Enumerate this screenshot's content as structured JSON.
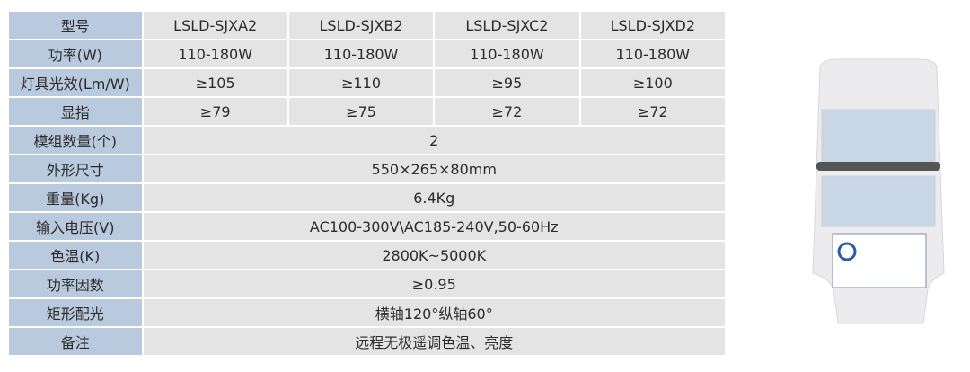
{
  "table": {
    "header_label": "型号",
    "models": [
      "LSLD-SJXA2",
      "LSLD-SJXB2",
      "LSLD-SJXC2",
      "LSLD-SJXD2"
    ],
    "rows_per_model": [
      {
        "label": "功率(W)",
        "values": [
          "110-180W",
          "110-180W",
          "110-180W",
          "110-180W"
        ]
      },
      {
        "label": "灯具光效(Lm/W)",
        "values": [
          "≥105",
          "≥110",
          "≥95",
          "≥100"
        ]
      },
      {
        "label": "显指",
        "values": [
          "≥79",
          "≥75",
          "≥72",
          "≥72"
        ]
      }
    ],
    "rows_shared": [
      {
        "label": "模组数量(个)",
        "value": "2"
      },
      {
        "label": "外形尺寸",
        "value": "550×265×80mm"
      },
      {
        "label": "重量(Kg)",
        "value": "6.4Kg"
      },
      {
        "label": "输入电压(V)",
        "value": "AC100-300V\\AC185-240V,50-60Hz"
      },
      {
        "label": "色温(K)",
        "value": "2800K~5000K"
      },
      {
        "label": "功率因数",
        "value": "≥0.95"
      },
      {
        "label": "矩形配光",
        "value": "横轴120°纵轴60°"
      },
      {
        "label": "备注",
        "value": "远程无极遥调色温、亮度"
      }
    ]
  },
  "colors": {
    "header_col": "#b9c9de",
    "cell": "#e4e4e4"
  },
  "product_image": "led-street-light"
}
